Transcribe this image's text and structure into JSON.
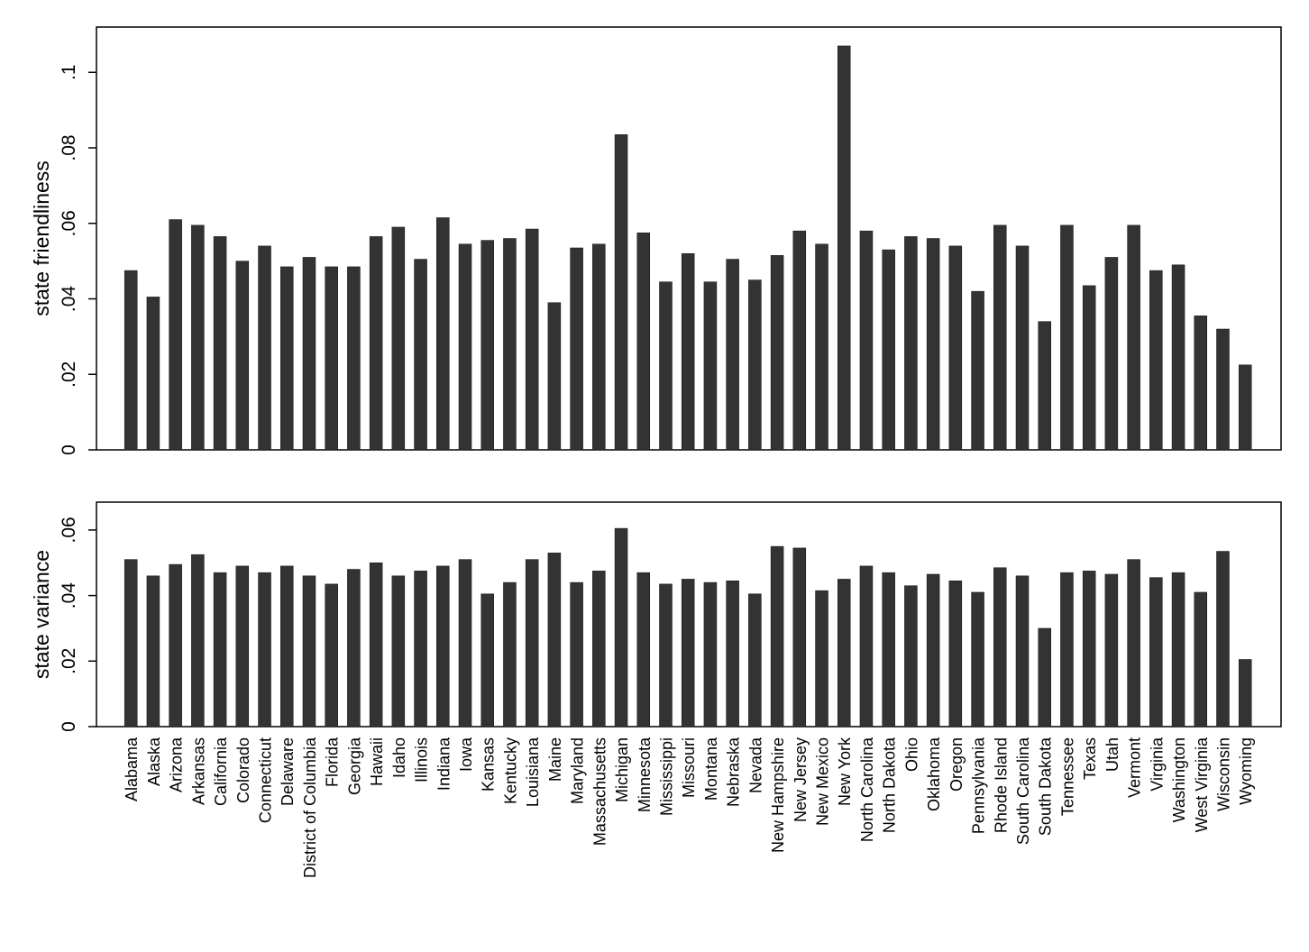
{
  "chart_data": [
    {
      "type": "bar",
      "ylabel": "state friendliness",
      "ylim": [
        0,
        0.112
      ],
      "yticks": [
        0,
        0.02,
        0.04,
        0.06,
        0.08,
        0.1
      ],
      "ytick_labels": [
        "0",
        ".02",
        ".04",
        ".06",
        ".08",
        ".1"
      ],
      "values": [
        0.0475,
        0.0405,
        0.061,
        0.0595,
        0.0565,
        0.05,
        0.054,
        0.0485,
        0.051,
        0.0485,
        0.0485,
        0.0565,
        0.059,
        0.0505,
        0.0615,
        0.0545,
        0.0555,
        0.056,
        0.0585,
        0.039,
        0.0535,
        0.0545,
        0.0835,
        0.0575,
        0.0445,
        0.052,
        0.0445,
        0.0505,
        0.045,
        0.0515,
        0.058,
        0.0545,
        0.107,
        0.058,
        0.053,
        0.0565,
        0.056,
        0.054,
        0.042,
        0.0595,
        0.054,
        0.034,
        0.0595,
        0.0435,
        0.051,
        0.0595,
        0.0475,
        0.049,
        0.0355,
        0.032,
        0.0225
      ]
    },
    {
      "type": "bar",
      "ylabel": "state variance",
      "ylim": [
        0,
        0.0685
      ],
      "yticks": [
        0,
        0.02,
        0.04,
        0.06
      ],
      "ytick_labels": [
        "0",
        ".02",
        ".04",
        ".06"
      ],
      "values": [
        0.051,
        0.046,
        0.0495,
        0.0525,
        0.047,
        0.049,
        0.047,
        0.049,
        0.046,
        0.0435,
        0.048,
        0.05,
        0.046,
        0.0475,
        0.049,
        0.051,
        0.0405,
        0.044,
        0.051,
        0.053,
        0.044,
        0.0475,
        0.0605,
        0.047,
        0.0435,
        0.045,
        0.044,
        0.0445,
        0.0405,
        0.055,
        0.0545,
        0.0415,
        0.045,
        0.049,
        0.047,
        0.043,
        0.0465,
        0.0445,
        0.041,
        0.0485,
        0.046,
        0.03,
        0.047,
        0.0475,
        0.0465,
        0.051,
        0.0455,
        0.047,
        0.041,
        0.0535,
        0.0205
      ]
    }
  ],
  "categories": [
    "Alabama",
    "Alaska",
    "Arizona",
    "Arkansas",
    "California",
    "Colorado",
    "Connecticut",
    "Delaware",
    "District of Columbia",
    "Florida",
    "Georgia",
    "Hawaii",
    "Idaho",
    "Illinois",
    "Indiana",
    "Iowa",
    "Kansas",
    "Kentucky",
    "Louisiana",
    "Maine",
    "Maryland",
    "Massachusetts",
    "Michigan",
    "Minnesota",
    "Mississippi",
    "Missouri",
    "Montana",
    "Nebraska",
    "Nevada",
    "New Hampshire",
    "New Jersey",
    "New Mexico",
    "New York",
    "North Carolina",
    "North Dakota",
    "Ohio",
    "Oklahoma",
    "Oregon",
    "Pennsylvania",
    "Rhode Island",
    "South Carolina",
    "South Dakota",
    "Tennessee",
    "Texas",
    "Utah",
    "Vermont",
    "Virginia",
    "Washington",
    "West Virginia",
    "Wisconsin",
    "Wyoming"
  ],
  "colors": {
    "bar": "#333333",
    "frame": "#000000"
  }
}
